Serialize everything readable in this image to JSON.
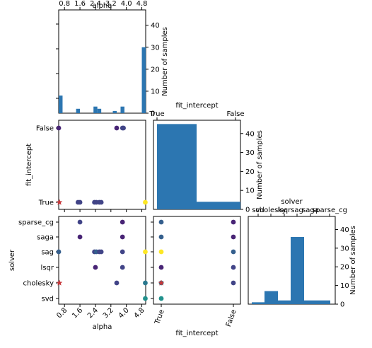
{
  "colors": {
    "bar": "#2c76b1",
    "star": "#c7373b"
  },
  "cmap": [
    "#440154",
    "#482475",
    "#414487",
    "#355f8d",
    "#2a788e",
    "#21918c",
    "#22a884",
    "#44bf70",
    "#7ad151",
    "#bddf26",
    "#fde725"
  ],
  "chart_data": [
    {
      "type": "bar",
      "role": "histogram",
      "panel": "alpha",
      "xlabel": "alpha",
      "ylabel": "Number of samples",
      "xticks": [
        "0.8",
        "1.6",
        "2.4",
        "3.2",
        "4.0",
        "4.8"
      ],
      "xtick_values": [
        0.8,
        1.6,
        2.4,
        3.2,
        4.0,
        4.8
      ],
      "yticks": [
        "0",
        "10",
        "20",
        "30",
        "40"
      ],
      "xlim": [
        0.5,
        5.0
      ],
      "ylim": [
        0,
        47
      ],
      "bins": [
        {
          "x0": 0.5,
          "x1": 0.7,
          "count": 8
        },
        {
          "x0": 1.4,
          "x1": 1.6,
          "count": 2
        },
        {
          "x0": 2.3,
          "x1": 2.5,
          "count": 3
        },
        {
          "x0": 2.5,
          "x1": 2.7,
          "count": 2
        },
        {
          "x0": 3.3,
          "x1": 3.5,
          "count": 1
        },
        {
          "x0": 3.7,
          "x1": 3.9,
          "count": 3
        },
        {
          "x0": 4.8,
          "x1": 5.0,
          "count": 30
        }
      ]
    },
    {
      "type": "bar",
      "role": "histogram",
      "panel": "fit_intercept",
      "xlabel": "fit_intercept",
      "ylabel": "Number of samples",
      "categories": [
        "True",
        "False"
      ],
      "values": [
        45,
        4
      ],
      "yticks": [
        "0",
        "10",
        "20",
        "30",
        "40"
      ],
      "ylim": [
        0,
        47
      ]
    },
    {
      "type": "bar",
      "role": "histogram",
      "panel": "solver",
      "xlabel": "solver",
      "ylabel": "Number of samples",
      "categories": [
        "svd",
        "cholesky",
        "lsqr",
        "sag",
        "saga",
        "sparse_cg"
      ],
      "values": [
        1,
        7,
        2,
        36,
        2,
        2
      ],
      "yticks": [
        "0",
        "10",
        "20",
        "30",
        "40"
      ],
      "ylim": [
        0,
        47
      ]
    },
    {
      "type": "scatter",
      "panel": "alpha_vs_fit_intercept",
      "xlabel": "alpha",
      "ylabel": "fit_intercept",
      "ycategories": [
        "True",
        "False"
      ],
      "points": [
        {
          "x": 1.5,
          "y": "True",
          "c": 0.15
        },
        {
          "x": 1.6,
          "y": "True",
          "c": 0.2
        },
        {
          "x": 2.35,
          "y": "True",
          "c": 0.2
        },
        {
          "x": 2.45,
          "y": "True",
          "c": 0.2
        },
        {
          "x": 2.6,
          "y": "True",
          "c": 0.2
        },
        {
          "x": 2.7,
          "y": "True",
          "c": 0.15
        },
        {
          "x": 4.98,
          "y": "True",
          "c": 1.0
        },
        {
          "x": 0.5,
          "y": "False",
          "c": 0.1
        },
        {
          "x": 3.5,
          "y": "False",
          "c": 0.1
        },
        {
          "x": 3.8,
          "y": "False",
          "c": 0.2
        },
        {
          "x": 3.85,
          "y": "False",
          "c": 0.15
        }
      ],
      "best": {
        "x": 0.5,
        "y": "True"
      }
    },
    {
      "type": "scatter",
      "panel": "alpha_vs_solver",
      "xlabel": "alpha",
      "ylabel": "solver",
      "ycategories": [
        "svd",
        "cholesky",
        "lsqr",
        "sag",
        "saga",
        "sparse_cg"
      ],
      "points": [
        {
          "x": 1.6,
          "y": "sparse_cg",
          "c": 0.2
        },
        {
          "x": 3.8,
          "y": "sparse_cg",
          "c": 0.05
        },
        {
          "x": 1.6,
          "y": "saga",
          "c": 0.1
        },
        {
          "x": 3.8,
          "y": "saga",
          "c": 0.1
        },
        {
          "x": 0.5,
          "y": "sag",
          "c": 0.3
        },
        {
          "x": 2.35,
          "y": "sag",
          "c": 0.2
        },
        {
          "x": 2.45,
          "y": "sag",
          "c": 0.25
        },
        {
          "x": 2.6,
          "y": "sag",
          "c": 0.2
        },
        {
          "x": 2.7,
          "y": "sag",
          "c": 0.2
        },
        {
          "x": 3.8,
          "y": "sag",
          "c": 0.2
        },
        {
          "x": 4.98,
          "y": "sag",
          "c": 1.0
        },
        {
          "x": 2.4,
          "y": "lsqr",
          "c": 0.05
        },
        {
          "x": 3.8,
          "y": "lsqr",
          "c": 0.2
        },
        {
          "x": 3.5,
          "y": "cholesky",
          "c": 0.15
        },
        {
          "x": 4.98,
          "y": "cholesky",
          "c": 0.4
        },
        {
          "x": 4.98,
          "y": "svd",
          "c": 0.45
        }
      ],
      "best": {
        "x": 0.5,
        "y": "cholesky"
      }
    },
    {
      "type": "scatter",
      "panel": "fit_intercept_vs_solver",
      "xlabel": "fit_intercept",
      "ylabel": "solver",
      "xcategories": [
        "True",
        "False"
      ],
      "ycategories": [
        "svd",
        "cholesky",
        "lsqr",
        "sag",
        "saga",
        "sparse_cg"
      ],
      "points": [
        {
          "x": "True",
          "y": "sparse_cg",
          "c": 0.3
        },
        {
          "x": "False",
          "y": "sparse_cg",
          "c": 0.05
        },
        {
          "x": "True",
          "y": "saga",
          "c": 0.25
        },
        {
          "x": "False",
          "y": "saga",
          "c": 0.05
        },
        {
          "x": "True",
          "y": "sag",
          "c": 1.0
        },
        {
          "x": "False",
          "y": "sag",
          "c": 0.3
        },
        {
          "x": "True",
          "y": "lsqr",
          "c": 0.05
        },
        {
          "x": "False",
          "y": "lsqr",
          "c": 0.2
        },
        {
          "x": "True",
          "y": "cholesky",
          "c": 0.4
        },
        {
          "x": "False",
          "y": "cholesky",
          "c": 0.15
        },
        {
          "x": "True",
          "y": "svd",
          "c": 0.45
        }
      ],
      "best": {
        "x": "True",
        "y": "cholesky"
      }
    }
  ]
}
